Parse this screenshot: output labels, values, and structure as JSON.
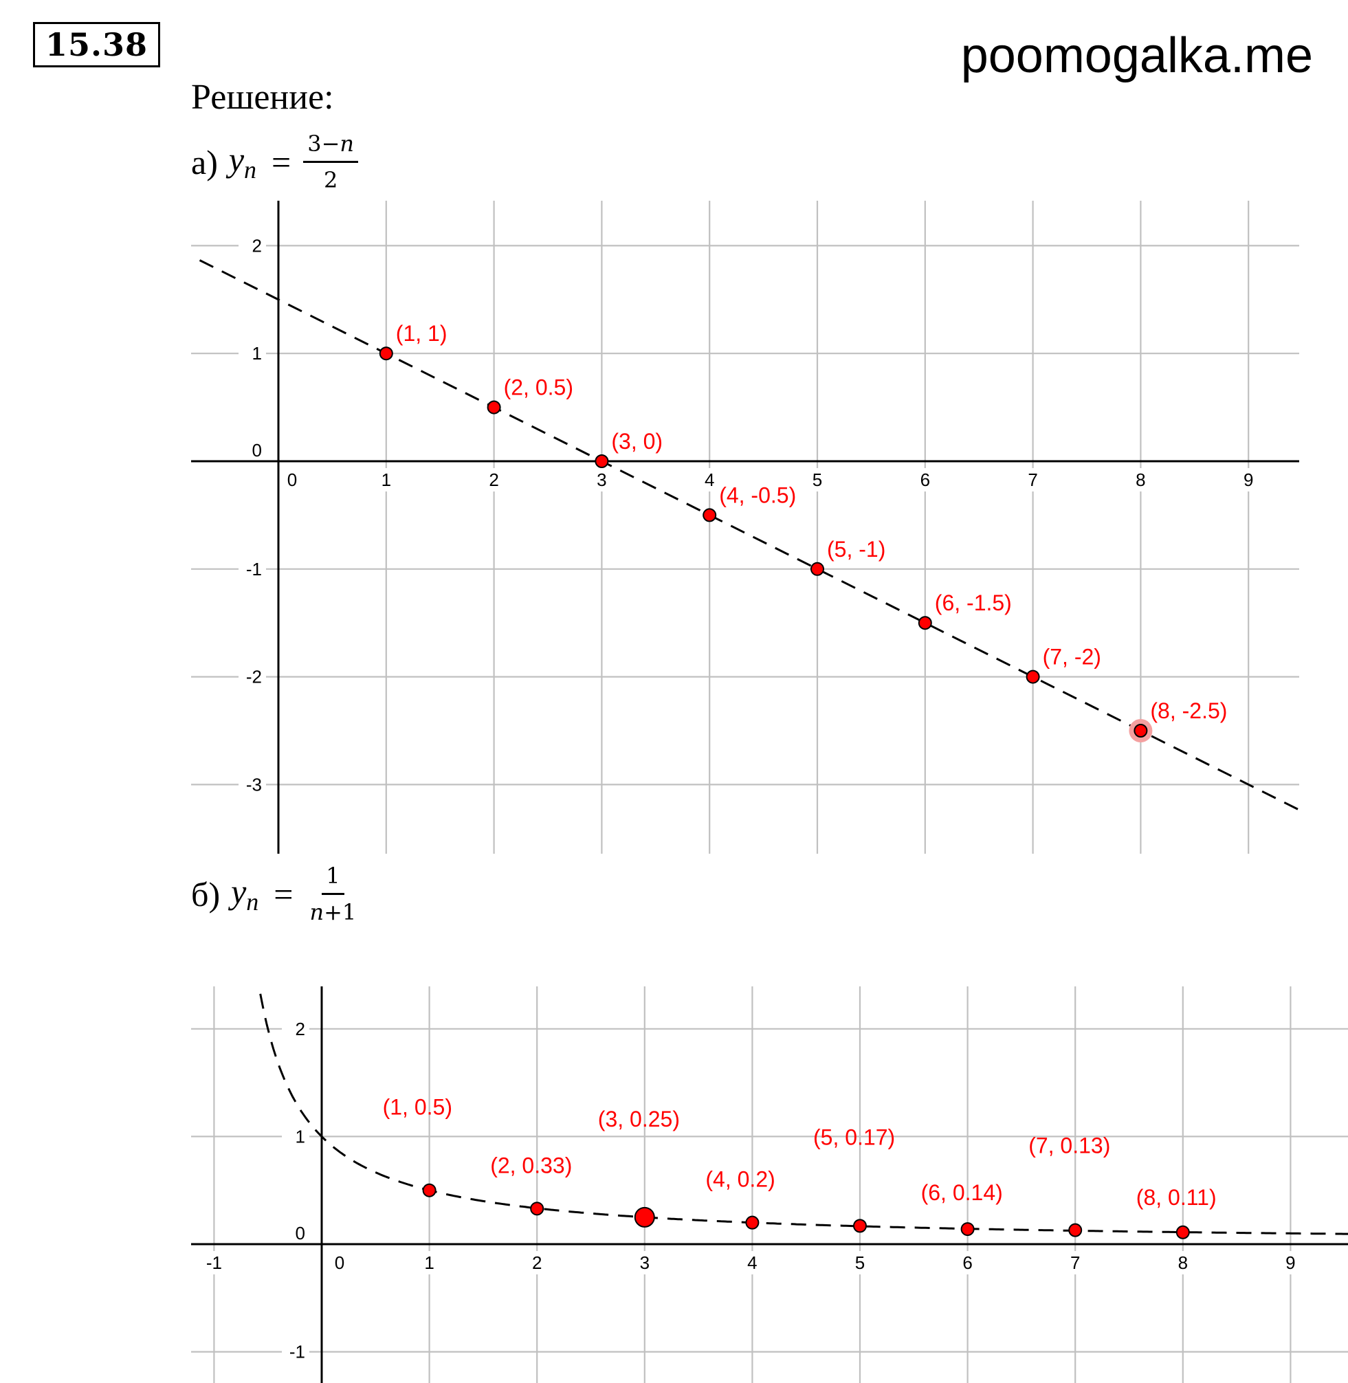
{
  "header": {
    "problem_number": "15.38",
    "site": "poomogalka.me",
    "solution_label": "Решение:"
  },
  "formula_a": {
    "label": "а)",
    "var": "y",
    "sub": "n",
    "eq": "=",
    "num": "3−",
    "num_var": "n",
    "den": "2",
    "den_var": ""
  },
  "formula_b": {
    "label": "б)",
    "var": "y",
    "sub": "n",
    "eq": "=",
    "num": "1",
    "num_var": "",
    "den": "+1",
    "den_var": "n"
  },
  "chart_data": [
    {
      "type": "scatter",
      "title": "",
      "xlim": [
        -0.8,
        9.5
      ],
      "ylim": [
        -3.6,
        2.4
      ],
      "grid": true,
      "x_ticks": [
        0,
        1,
        2,
        3,
        4,
        5,
        6,
        7,
        8,
        9
      ],
      "y_ticks": [
        2,
        1,
        0,
        -1,
        -2,
        -3
      ],
      "curve": "line",
      "points": [
        {
          "x": 1,
          "y": 1,
          "label": "(1, 1)"
        },
        {
          "x": 2,
          "y": 0.5,
          "label": "(2, 0.5)"
        },
        {
          "x": 3,
          "y": 0,
          "label": "(3, 0)"
        },
        {
          "x": 4,
          "y": -0.5,
          "label": "(4, -0.5)"
        },
        {
          "x": 5,
          "y": -1,
          "label": "(5, -1)"
        },
        {
          "x": 6,
          "y": -1.5,
          "label": "(6, -1.5)"
        },
        {
          "x": 7,
          "y": -2,
          "label": "(7, -2)"
        },
        {
          "x": 8,
          "y": -2.5,
          "label": "(8, -2.5)",
          "highlight": true
        }
      ],
      "colors": {
        "point": "#ff0000",
        "label": "#ff0000",
        "grid": "#c0c0c0",
        "curve": "#000000"
      }
    },
    {
      "type": "scatter",
      "title": "",
      "xlim": [
        -1.2,
        9.5
      ],
      "ylim": [
        -1.3,
        2.4
      ],
      "grid": true,
      "x_ticks": [
        -1,
        0,
        1,
        2,
        3,
        4,
        5,
        6,
        7,
        8,
        9
      ],
      "y_ticks": [
        2,
        1,
        0,
        -1
      ],
      "curve": "reciprocal",
      "points": [
        {
          "x": 1,
          "y": 0.5,
          "label": "(1, 0.5)"
        },
        {
          "x": 2,
          "y": 0.33,
          "label": "(2, 0.33)"
        },
        {
          "x": 3,
          "y": 0.25,
          "label": "(3, 0.25)",
          "large": true
        },
        {
          "x": 4,
          "y": 0.2,
          "label": "(4, 0.2)"
        },
        {
          "x": 5,
          "y": 0.17,
          "label": "(5, 0.17)"
        },
        {
          "x": 6,
          "y": 0.14,
          "label": "(6, 0.14)"
        },
        {
          "x": 7,
          "y": 0.13,
          "label": "(7, 0.13)"
        },
        {
          "x": 8,
          "y": 0.11,
          "label": "(8, 0.11)"
        }
      ],
      "colors": {
        "point": "#ff0000",
        "label": "#ff0000",
        "grid": "#c0c0c0",
        "curve": "#000000"
      }
    }
  ]
}
